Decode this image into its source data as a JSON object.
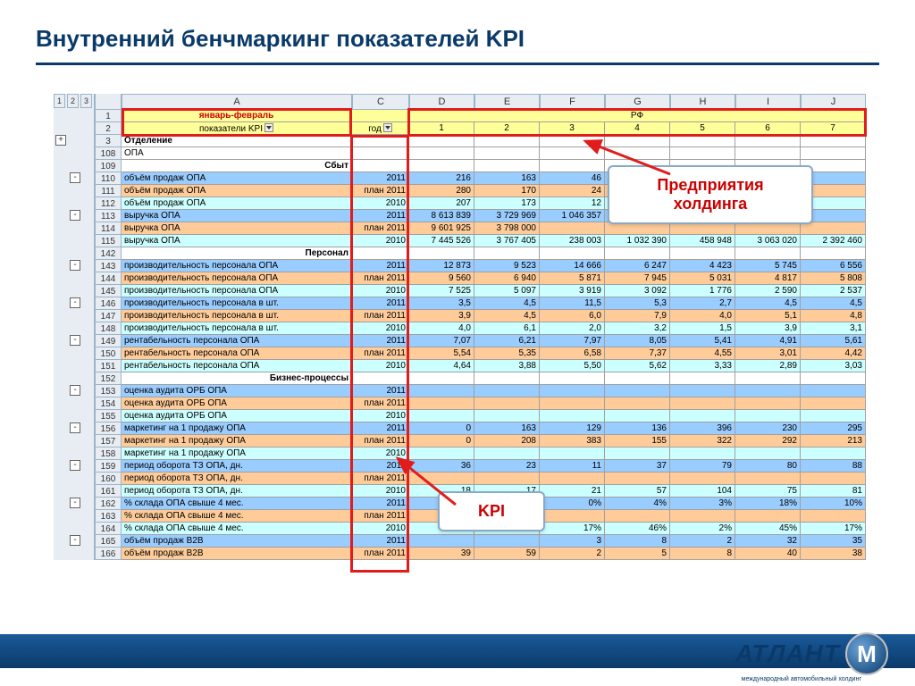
{
  "title": "Внутренний бенчмаркинг показателей KPI",
  "colHeads": [
    "A",
    "C",
    "D",
    "E",
    "F",
    "G",
    "H",
    "I",
    "J"
  ],
  "outlineBtns": [
    "1",
    "2",
    "3"
  ],
  "headerRow1": {
    "a": "январь-февраль",
    "rf": "РФ"
  },
  "headerRow2": {
    "a": "показатели KPI",
    "c": "год",
    "cols": [
      "1",
      "2",
      "3",
      "4",
      "5",
      "6",
      "7"
    ]
  },
  "callout1": "Предприятия холдинга",
  "callout2": "KPI",
  "logo": "АТЛАНТ",
  "logoLetter": "M",
  "logoSub": "международный автомобильный холдинг",
  "rows": [
    {
      "n": "3",
      "t": "sect",
      "a": "Отделение",
      "c": "",
      "v": [
        "",
        "",
        "",
        "",
        "",
        "",
        ""
      ]
    },
    {
      "n": "108",
      "t": "white",
      "a": "ОПА",
      "c": "",
      "v": [
        "",
        "",
        "",
        "",
        "",
        "",
        ""
      ]
    },
    {
      "n": "109",
      "t": "sect",
      "a": "Сбыт",
      "sectRight": true,
      "c": "",
      "v": [
        "",
        "",
        "",
        "",
        "",
        "",
        ""
      ]
    },
    {
      "n": "110",
      "t": "blue",
      "a": "объём продаж ОПА",
      "c": "2011",
      "v": [
        "216",
        "163",
        "46",
        "",
        "",
        "",
        ""
      ]
    },
    {
      "n": "111",
      "t": "peach",
      "a": "объём продаж ОПА",
      "c": "план 2011",
      "v": [
        "280",
        "170",
        "24",
        "",
        "",
        "",
        ""
      ]
    },
    {
      "n": "112",
      "t": "cyan",
      "a": "объём продаж ОПА",
      "c": "2010",
      "v": [
        "207",
        "173",
        "12",
        "",
        "",
        "",
        ""
      ]
    },
    {
      "n": "113",
      "t": "blue",
      "a": "выручка ОПА",
      "c": "2011",
      "v": [
        "8 613 839",
        "3 729 969",
        "1 046 357",
        "1 9",
        "",
        "",
        ""
      ]
    },
    {
      "n": "114",
      "t": "peach",
      "a": "выручка ОПА",
      "c": "план 2011",
      "v": [
        "9 601 925",
        "3 798 000",
        "",
        "",
        "",
        "",
        ""
      ]
    },
    {
      "n": "115",
      "t": "cyan",
      "a": "выручка ОПА",
      "c": "2010",
      "v": [
        "7 445 526",
        "3 767 405",
        "238 003",
        "1 032 390",
        "458 948",
        "3 063 020",
        "2 392 460"
      ]
    },
    {
      "n": "142",
      "t": "sect",
      "a": "Персонал",
      "sectRight": true,
      "c": "",
      "v": [
        "",
        "",
        "",
        "",
        "",
        "",
        ""
      ]
    },
    {
      "n": "143",
      "t": "blue",
      "a": "производительность персонала ОПА",
      "c": "2011",
      "v": [
        "12 873",
        "9 523",
        "14 666",
        "6 247",
        "4 423",
        "5 745",
        "6 556"
      ]
    },
    {
      "n": "144",
      "t": "peach",
      "a": "производительность персонала ОПА",
      "c": "план 2011",
      "v": [
        "9 560",
        "6 940",
        "5 871",
        "7 945",
        "5 031",
        "4 817",
        "5 808"
      ]
    },
    {
      "n": "145",
      "t": "cyan",
      "a": "производительность персонала ОПА",
      "c": "2010",
      "v": [
        "7 525",
        "5 097",
        "3 919",
        "3 092",
        "1 776",
        "2 590",
        "2 537"
      ]
    },
    {
      "n": "146",
      "t": "blue",
      "a": "производительность персонала в шт.",
      "c": "2011",
      "v": [
        "3,5",
        "4,5",
        "11,5",
        "5,3",
        "2,7",
        "4,5",
        "4,5"
      ]
    },
    {
      "n": "147",
      "t": "peach",
      "a": "производительность персонала в шт.",
      "c": "план 2011",
      "v": [
        "3,9",
        "4,5",
        "6,0",
        "7,9",
        "4,0",
        "5,1",
        "4,8"
      ]
    },
    {
      "n": "148",
      "t": "cyan",
      "a": "производительность персонала в шт.",
      "c": "2010",
      "v": [
        "4,0",
        "6,1",
        "2,0",
        "3,2",
        "1,5",
        "3,9",
        "3,1"
      ]
    },
    {
      "n": "149",
      "t": "blue",
      "a": "рентабельность персонала ОПА",
      "c": "2011",
      "v": [
        "7,07",
        "6,21",
        "7,97",
        "8,05",
        "5,41",
        "4,91",
        "5,61"
      ]
    },
    {
      "n": "150",
      "t": "peach",
      "a": "рентабельность персонала ОПА",
      "c": "план 2011",
      "v": [
        "5,54",
        "5,35",
        "6,58",
        "7,37",
        "4,55",
        "3,01",
        "4,42"
      ]
    },
    {
      "n": "151",
      "t": "cyan",
      "a": "рентабельность персонала ОПА",
      "c": "2010",
      "v": [
        "4,64",
        "3,88",
        "5,50",
        "5,62",
        "3,33",
        "2,89",
        "3,03"
      ]
    },
    {
      "n": "152",
      "t": "sect",
      "a": "Бизнес-процессы",
      "sectRight": true,
      "c": "",
      "v": [
        "",
        "",
        "",
        "",
        "",
        "",
        ""
      ]
    },
    {
      "n": "153",
      "t": "blue",
      "a": "оценка аудита ОРБ ОПА",
      "c": "2011",
      "v": [
        "",
        "",
        "",
        "",
        "",
        "",
        ""
      ]
    },
    {
      "n": "154",
      "t": "peach",
      "a": "оценка аудита ОРБ ОПА",
      "c": "план 2011",
      "v": [
        "",
        "",
        "",
        "",
        "",
        "",
        ""
      ]
    },
    {
      "n": "155",
      "t": "cyan",
      "a": "оценка аудита ОРБ ОПА",
      "c": "2010",
      "v": [
        "",
        "",
        "",
        "",
        "",
        "",
        ""
      ]
    },
    {
      "n": "156",
      "t": "blue",
      "a": "маркетинг на 1 продажу ОПА",
      "c": "2011",
      "v": [
        "0",
        "163",
        "129",
        "136",
        "396",
        "230",
        "295"
      ]
    },
    {
      "n": "157",
      "t": "peach",
      "a": "маркетинг на 1 продажу ОПА",
      "c": "план 2011",
      "v": [
        "0",
        "208",
        "383",
        "155",
        "322",
        "292",
        "213"
      ]
    },
    {
      "n": "158",
      "t": "cyan",
      "a": "маркетинг на 1 продажу ОПА",
      "c": "2010",
      "v": [
        "",
        "",
        "",
        "",
        "",
        "",
        ""
      ]
    },
    {
      "n": "159",
      "t": "blue",
      "a": "период оборота ТЗ ОПА, дн.",
      "c": "2011",
      "v": [
        "36",
        "23",
        "11",
        "37",
        "79",
        "80",
        "88"
      ]
    },
    {
      "n": "160",
      "t": "peach",
      "a": "период оборота ТЗ ОПА, дн.",
      "c": "план 2011",
      "v": [
        "",
        "",
        "",
        "",
        "",
        "",
        ""
      ]
    },
    {
      "n": "161",
      "t": "cyan",
      "a": "период оборота ТЗ ОПА, дн.",
      "c": "2010",
      "v": [
        "18",
        "17",
        "21",
        "57",
        "104",
        "75",
        "81"
      ]
    },
    {
      "n": "162",
      "t": "blue",
      "a": "% склада ОПА свыше 4 мес.",
      "c": "2011",
      "v": [
        "6%",
        "3%",
        "0%",
        "4%",
        "3%",
        "18%",
        "10%"
      ]
    },
    {
      "n": "163",
      "t": "peach",
      "a": "% склада ОПА свыше 4 мес.",
      "c": "план 2011",
      "v": [
        "",
        "",
        "",
        "",
        "",
        "",
        ""
      ]
    },
    {
      "n": "164",
      "t": "cyan",
      "a": "% склада ОПА свыше 4 мес.",
      "c": "2010",
      "v": [
        "",
        "0%",
        "17%",
        "46%",
        "2%",
        "45%",
        "17%"
      ]
    },
    {
      "n": "165",
      "t": "blue",
      "a": "объём продаж B2B",
      "c": "2011",
      "v": [
        "",
        "",
        "3",
        "8",
        "2",
        "32",
        "35"
      ]
    },
    {
      "n": "166",
      "t": "peach",
      "a": "объём продаж В2В",
      "c": "план 2011",
      "v": [
        "39",
        "59",
        "2",
        "5",
        "8",
        "40",
        "38"
      ]
    }
  ],
  "outlineMarks": [
    {
      "row": 0,
      "sym": "+"
    },
    {
      "row": 3,
      "sym": "-"
    },
    {
      "row": 6,
      "sym": "-"
    },
    {
      "row": 10,
      "sym": "-"
    },
    {
      "row": 13,
      "sym": "-"
    },
    {
      "row": 16,
      "sym": "-"
    },
    {
      "row": 20,
      "sym": "-"
    },
    {
      "row": 23,
      "sym": "-"
    },
    {
      "row": 26,
      "sym": "-"
    },
    {
      "row": 29,
      "sym": "-"
    },
    {
      "row": 32,
      "sym": "-"
    }
  ],
  "colors": {
    "titleColor": "#0a3a6a",
    "blue": "#99ccff",
    "peach": "#ffcc99",
    "cyan": "#ccffff",
    "yellow": "#ffff99",
    "red": "#e21b1b",
    "excelHdr": "#e7edf3"
  }
}
